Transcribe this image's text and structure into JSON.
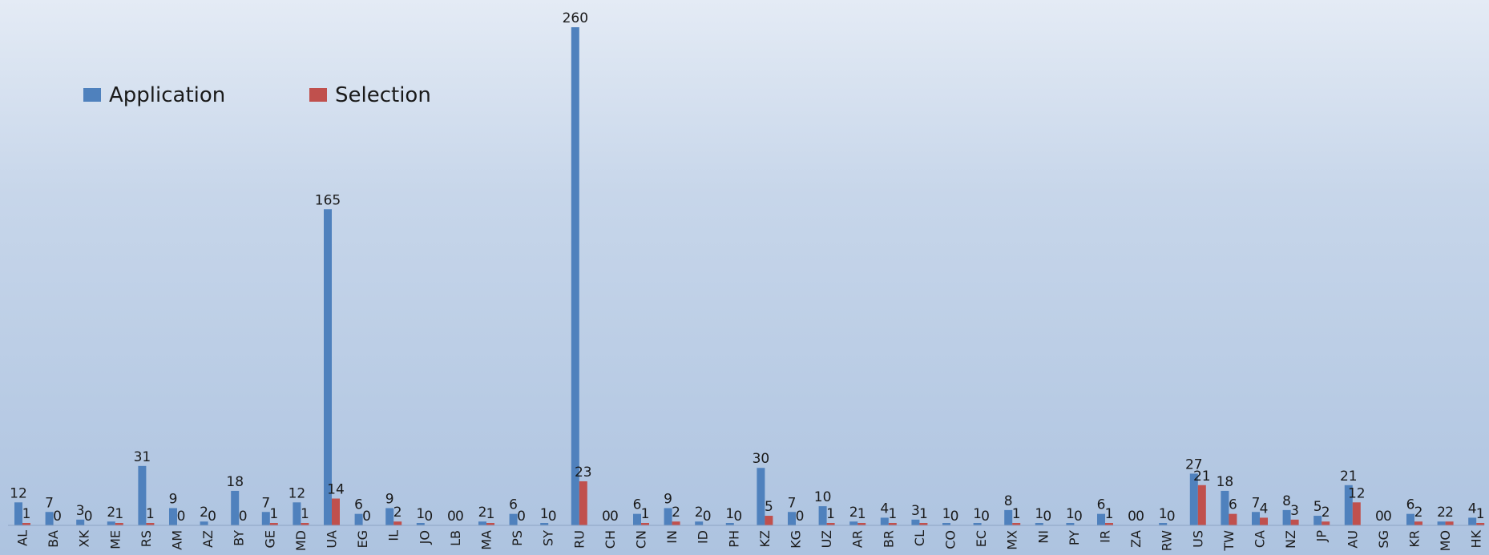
{
  "chart_data": {
    "type": "bar",
    "categories": [
      "AL",
      "BA",
      "XK",
      "ME",
      "RS",
      "AM",
      "AZ",
      "BY",
      "GE",
      "MD",
      "UA",
      "EG",
      "IL",
      "JO",
      "LB",
      "MA",
      "PS",
      "SY",
      "RU",
      "CH",
      "CN",
      "IN",
      "ID",
      "PH",
      "KZ",
      "KG",
      "UZ",
      "AR",
      "BR",
      "CL",
      "CO",
      "EC",
      "MX",
      "NI",
      "PY",
      "IR",
      "ZA",
      "RW",
      "US",
      "TW",
      "CA",
      "NZ",
      "JP",
      "AU",
      "SG",
      "KR",
      "MO",
      "HK"
    ],
    "series": [
      {
        "name": "Application",
        "color": "#4f81bd",
        "values": [
          12,
          7,
          3,
          2,
          31,
          9,
          2,
          18,
          7,
          12,
          165,
          6,
          9,
          1,
          0,
          2,
          6,
          1,
          260,
          0,
          6,
          9,
          2,
          1,
          30,
          7,
          10,
          2,
          4,
          3,
          1,
          1,
          8,
          1,
          1,
          6,
          0,
          1,
          27,
          18,
          7,
          8,
          5,
          21,
          0,
          6,
          2,
          4
        ]
      },
      {
        "name": "Selection",
        "color": "#c0504d",
        "values": [
          1,
          0,
          0,
          1,
          1,
          0,
          0,
          0,
          1,
          1,
          14,
          0,
          2,
          0,
          0,
          1,
          0,
          0,
          23,
          0,
          1,
          2,
          0,
          0,
          5,
          0,
          1,
          1,
          1,
          1,
          0,
          0,
          1,
          0,
          0,
          1,
          0,
          0,
          21,
          6,
          4,
          3,
          2,
          12,
          0,
          2,
          2,
          1
        ]
      }
    ],
    "ylim": [
      0,
      260
    ],
    "legend": "top-left",
    "grid": false
  }
}
